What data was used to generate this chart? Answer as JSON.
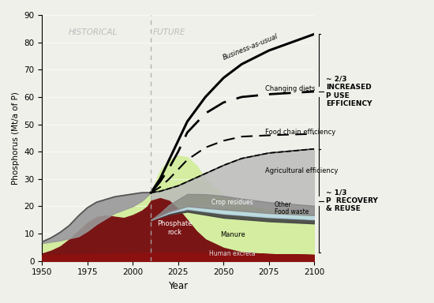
{
  "xlim": [
    1950,
    2100
  ],
  "ylim": [
    0,
    90
  ],
  "xlabel": "Year",
  "ylabel": "Phosphorus (Mt/a of P)",
  "xticks": [
    1950,
    1975,
    2000,
    2025,
    2050,
    2075,
    2100
  ],
  "yticks": [
    0,
    10,
    20,
    30,
    40,
    50,
    60,
    70,
    80,
    90
  ],
  "divider_year": 2010,
  "bg_color": "#f0f0eb",
  "colors": {
    "human_excreta": "#8b1010",
    "manure_green": "#d4eda0",
    "phosphate_rock": "#7a1515",
    "crop_residues": "#888888",
    "other": "#b8d8e8",
    "food_waste": "#444444",
    "gray_hist": "#999999"
  },
  "hist_gray_x": [
    1950,
    1955,
    1960,
    1965,
    1970,
    1975,
    1980,
    1985,
    1990,
    1995,
    2000,
    2005,
    2010
  ],
  "hist_gray_y": [
    7.0,
    8.5,
    10.5,
    13.0,
    16.5,
    19.5,
    21.5,
    22.5,
    23.5,
    24.0,
    24.5,
    25.0,
    25.0
  ],
  "human_excreta_x": [
    1950,
    1975,
    2000,
    2010,
    2030,
    2050,
    2075,
    2100
  ],
  "human_excreta_y": [
    2.2,
    2.5,
    2.8,
    3.0,
    3.0,
    2.8,
    2.5,
    2.2
  ],
  "phosphate_rock_x": [
    1950,
    1955,
    1960,
    1965,
    1970,
    1975,
    1980,
    1985,
    1990,
    1995,
    2000,
    2005,
    2008,
    2010,
    2015,
    2020,
    2025,
    2030,
    2035,
    2040,
    2050,
    2060,
    2075,
    2100
  ],
  "phosphate_rock_y": [
    0.5,
    1.5,
    3.0,
    5.5,
    8.5,
    11.5,
    13.5,
    14.0,
    13.5,
    13.0,
    14.0,
    15.5,
    17.0,
    19.0,
    20.0,
    19.0,
    16.0,
    12.0,
    8.0,
    5.0,
    2.0,
    0.5,
    0.0,
    0.0
  ],
  "green_hist_x": [
    1950,
    1960,
    1970,
    1975,
    1980,
    1990,
    2000,
    2005,
    2010
  ],
  "green_hist_y": [
    6.5,
    7.5,
    9.0,
    11.0,
    13.5,
    17.5,
    20.0,
    22.0,
    25.0
  ],
  "green_fut_x": [
    2010,
    2015,
    2020,
    2025,
    2030,
    2035,
    2040,
    2045,
    2050,
    2060,
    2075,
    2100
  ],
  "green_fut_y": [
    25.0,
    33.0,
    37.0,
    38.5,
    38.0,
    35.0,
    30.0,
    27.0,
    24.0,
    21.0,
    18.5,
    17.0
  ],
  "manure_fut_x": [
    2010,
    2020,
    2030,
    2040,
    2050,
    2075,
    2100
  ],
  "manure_fut_y": [
    12.0,
    14.0,
    15.0,
    14.0,
    13.0,
    12.0,
    11.5
  ],
  "food_waste_fut_x": [
    2010,
    2020,
    2030,
    2050,
    2075,
    2100
  ],
  "food_waste_fut_y": [
    0.0,
    0.5,
    1.0,
    1.5,
    1.5,
    1.5
  ],
  "other_fut_x": [
    2010,
    2020,
    2030,
    2050,
    2075,
    2100
  ],
  "other_fut_y": [
    0.0,
    0.5,
    1.0,
    1.5,
    1.5,
    1.5
  ],
  "crop_residues_fut_x": [
    2010,
    2015,
    2020,
    2030,
    2040,
    2050,
    2060,
    2075,
    2100
  ],
  "crop_residues_fut_y": [
    0.0,
    1.0,
    2.5,
    4.5,
    5.0,
    5.0,
    4.5,
    4.0,
    3.5
  ],
  "bau_x": [
    2010,
    2015,
    2020,
    2025,
    2030,
    2040,
    2050,
    2060,
    2075,
    2100
  ],
  "bau_y": [
    25.0,
    30.0,
    37.0,
    44.0,
    51.0,
    60.0,
    67.0,
    72.0,
    77.0,
    83.0
  ],
  "cd_x": [
    2010,
    2015,
    2020,
    2025,
    2030,
    2040,
    2050,
    2060,
    2075,
    2100
  ],
  "cd_y": [
    25.0,
    29.0,
    34.0,
    40.0,
    47.0,
    54.0,
    58.0,
    60.0,
    61.0,
    62.0
  ],
  "fce_x": [
    2010,
    2015,
    2020,
    2025,
    2030,
    2040,
    2050,
    2060,
    2075,
    2100
  ],
  "fce_y": [
    25.0,
    27.0,
    30.0,
    33.5,
    37.0,
    41.5,
    44.0,
    45.5,
    46.0,
    46.5
  ],
  "ae_x": [
    2010,
    2015,
    2020,
    2025,
    2030,
    2040,
    2050,
    2060,
    2075,
    2100
  ],
  "ae_y": [
    25.0,
    25.5,
    26.5,
    27.5,
    29.0,
    32.0,
    35.0,
    37.5,
    39.5,
    41.0
  ]
}
